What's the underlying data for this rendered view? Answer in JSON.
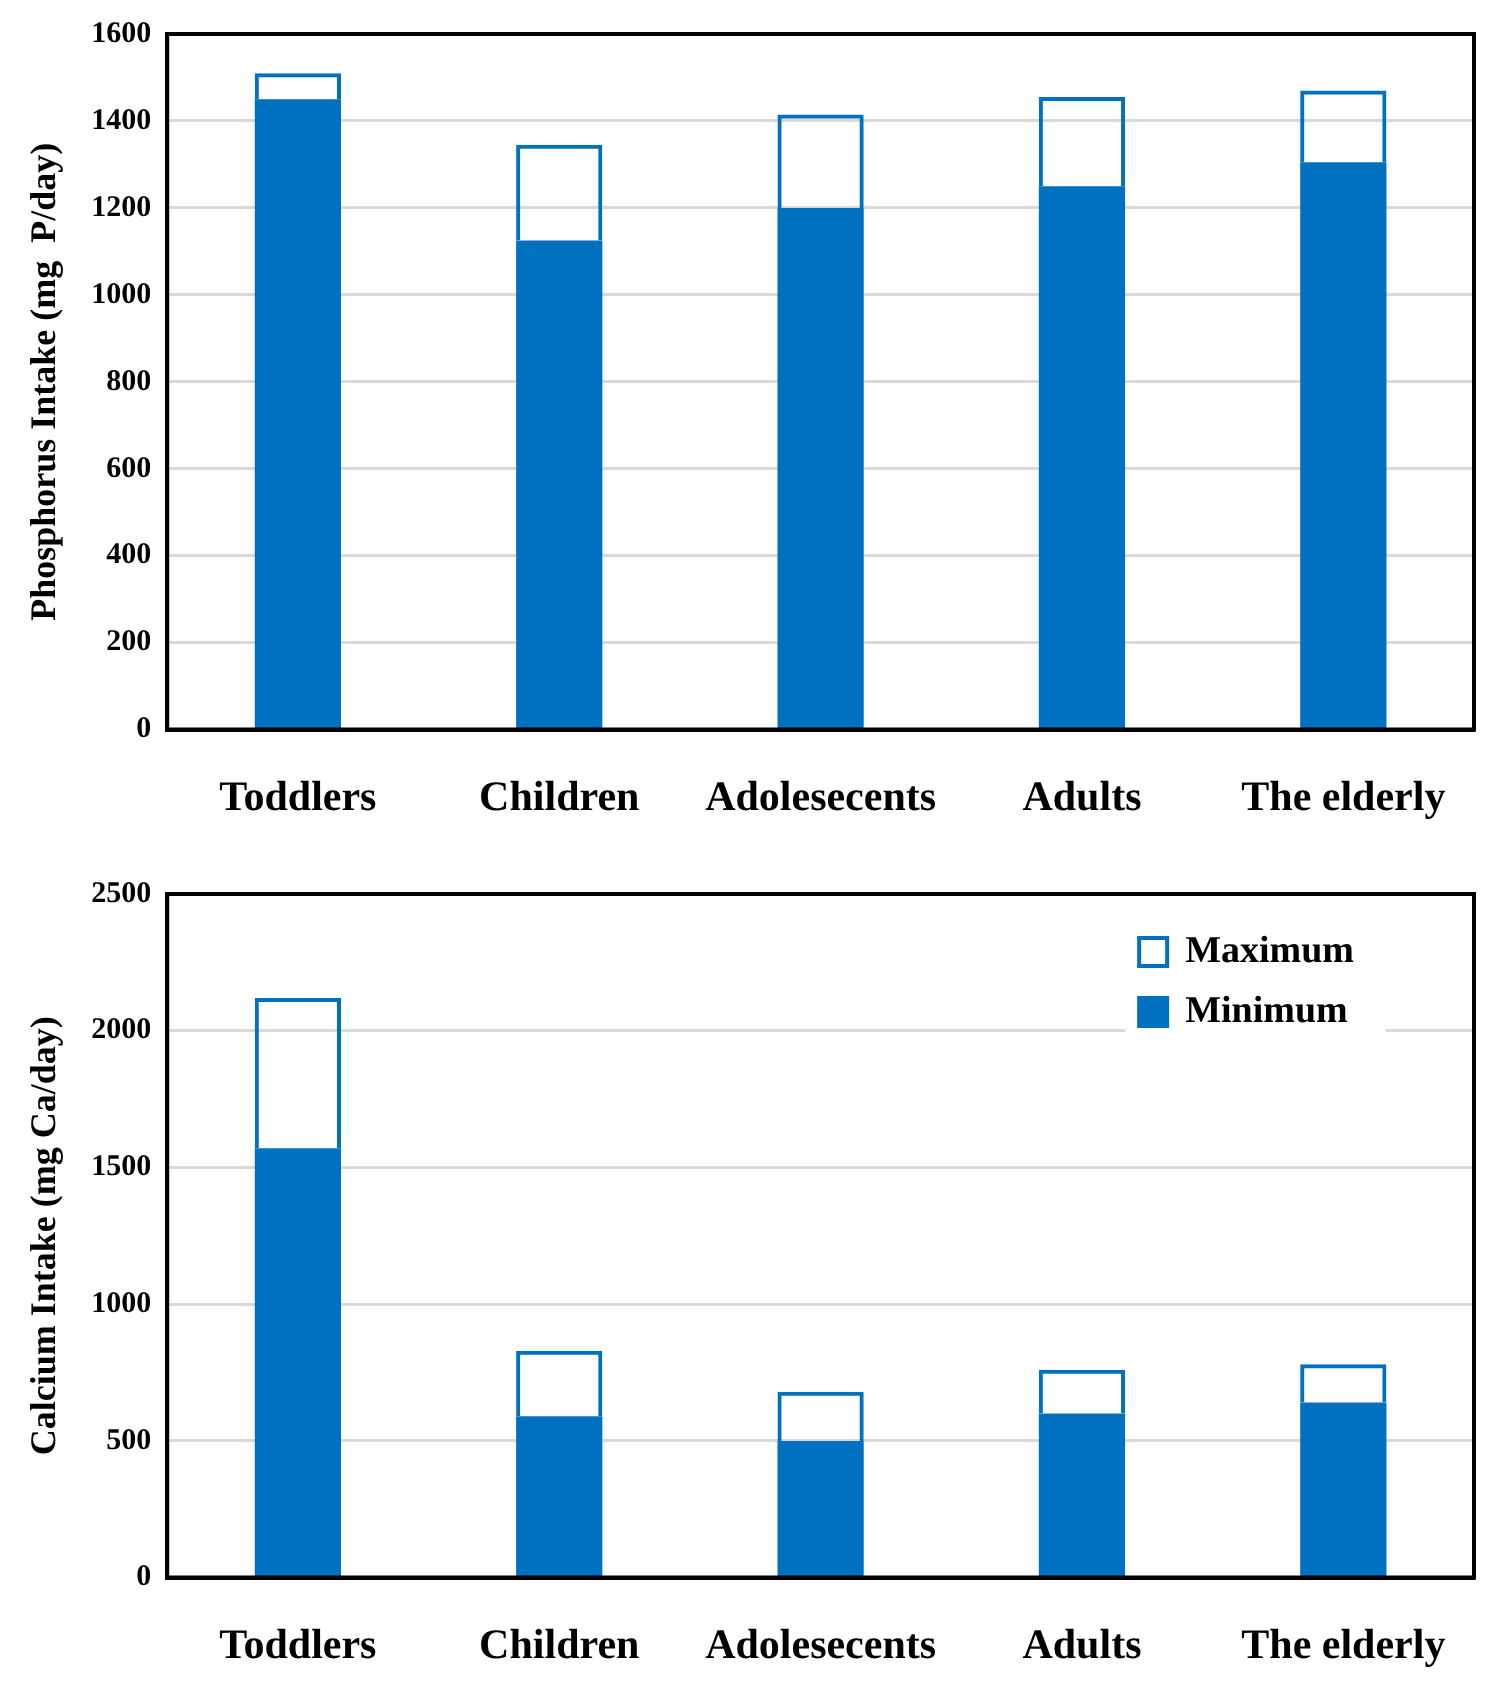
{
  "chart_data": [
    {
      "type": "bar",
      "stacked": true,
      "ylabel": "Phosphorus Intake (mg  P/day)",
      "categories": [
        "Toddlers",
        "Children",
        "Adolesecents",
        "Adults",
        "The elderly"
      ],
      "ylim": [
        0,
        1600
      ],
      "yticks": [
        0,
        200,
        400,
        600,
        800,
        1000,
        1200,
        1400,
        1600
      ],
      "grid": "y",
      "legend": false,
      "series": [
        {
          "color": "#0070c0",
          "values": [
            1450,
            1125,
            1200,
            1250,
            1305
          ]
        },
        {
          "color": "#0070c0",
          "values": [
            60,
            220,
            215,
            205,
            165
          ]
        }
      ]
    },
    {
      "type": "bar",
      "stacked": true,
      "ylabel": "Calcium Intake (mg Ca/day)",
      "categories": [
        "Toddlers",
        "Children",
        "Adolesecents",
        "Adults",
        "The elderly"
      ],
      "ylim": [
        0,
        2500
      ],
      "yticks": [
        0,
        500,
        1000,
        1500,
        2000,
        2500
      ],
      "grid": "y",
      "legend": "top right",
      "series": [
        {
          "name": "Minimum",
          "color": "#0070c0",
          "values": [
            1570,
            590,
            500,
            600,
            640
          ]
        },
        {
          "name": "Maximum",
          "color": "#0070c0",
          "values": [
            550,
            240,
            180,
            160,
            140
          ]
        }
      ]
    }
  ]
}
